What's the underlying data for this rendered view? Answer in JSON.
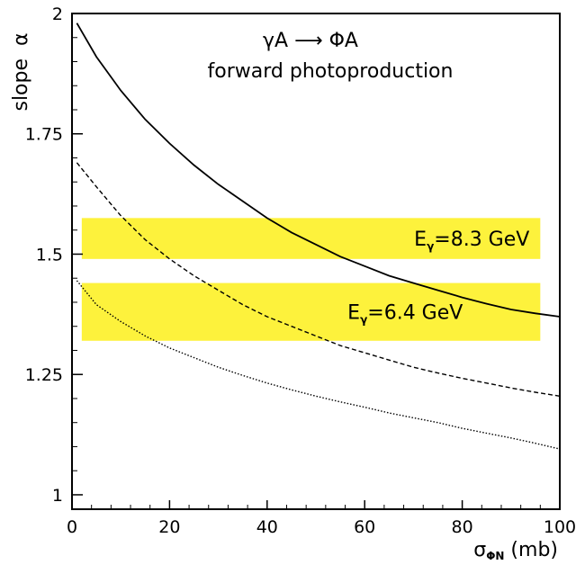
{
  "chart_data": {
    "type": "line",
    "title": "γA ⟶ ΦA",
    "subtitle": "forward photoproduction",
    "xlabel": {
      "main": "σ",
      "sub": "ΦN",
      "rest": " (mb)"
    },
    "ylabel": "slope  α",
    "xlim": [
      0,
      100
    ],
    "ylim": [
      0.97,
      2.0
    ],
    "xticks": [
      0,
      20,
      40,
      60,
      80,
      100
    ],
    "xtick_labels": [
      "0",
      "20",
      "40",
      "60",
      "80",
      "100"
    ],
    "yticks": [
      1.0,
      1.25,
      1.5,
      1.75,
      2.0
    ],
    "ytick_labels": [
      "1",
      "1.25",
      "1.5",
      "1.75",
      "2"
    ],
    "grid": false,
    "series": [
      {
        "style": "solid",
        "x": [
          1,
          5,
          10,
          15,
          20,
          25,
          30,
          35,
          40,
          45,
          50,
          55,
          60,
          65,
          70,
          75,
          80,
          85,
          90,
          95,
          100
        ],
        "y": [
          1.98,
          1.91,
          1.84,
          1.78,
          1.73,
          1.685,
          1.645,
          1.61,
          1.575,
          1.545,
          1.52,
          1.495,
          1.475,
          1.455,
          1.44,
          1.425,
          1.41,
          1.397,
          1.385,
          1.377,
          1.37
        ]
      },
      {
        "style": "dashed",
        "x": [
          1,
          5,
          10,
          15,
          20,
          25,
          30,
          35,
          40,
          45,
          50,
          55,
          60,
          65,
          70,
          75,
          80,
          85,
          90,
          95,
          100
        ],
        "y": [
          1.69,
          1.64,
          1.58,
          1.53,
          1.49,
          1.455,
          1.425,
          1.395,
          1.37,
          1.35,
          1.33,
          1.31,
          1.295,
          1.28,
          1.265,
          1.253,
          1.242,
          1.232,
          1.222,
          1.213,
          1.205
        ]
      },
      {
        "style": "dotted",
        "x": [
          1,
          5,
          10,
          15,
          20,
          25,
          30,
          35,
          40,
          45,
          50,
          55,
          60,
          65,
          70,
          75,
          80,
          85,
          90,
          95,
          100
        ],
        "y": [
          1.445,
          1.395,
          1.36,
          1.33,
          1.305,
          1.285,
          1.265,
          1.248,
          1.232,
          1.218,
          1.205,
          1.193,
          1.182,
          1.17,
          1.16,
          1.15,
          1.138,
          1.128,
          1.118,
          1.107,
          1.095
        ]
      }
    ],
    "bands": [
      {
        "label_main": "E",
        "label_sub": "γ",
        "label_rest": "=8.3 GeV",
        "x_range": [
          2,
          96
        ],
        "y_range": [
          1.49,
          1.575
        ],
        "color": "#fdf23c"
      },
      {
        "label_main": "E",
        "label_sub": "γ",
        "label_rest": "=6.4 GeV",
        "x_range": [
          2,
          96
        ],
        "y_range": [
          1.32,
          1.44
        ],
        "color": "#fdf23c"
      }
    ]
  }
}
